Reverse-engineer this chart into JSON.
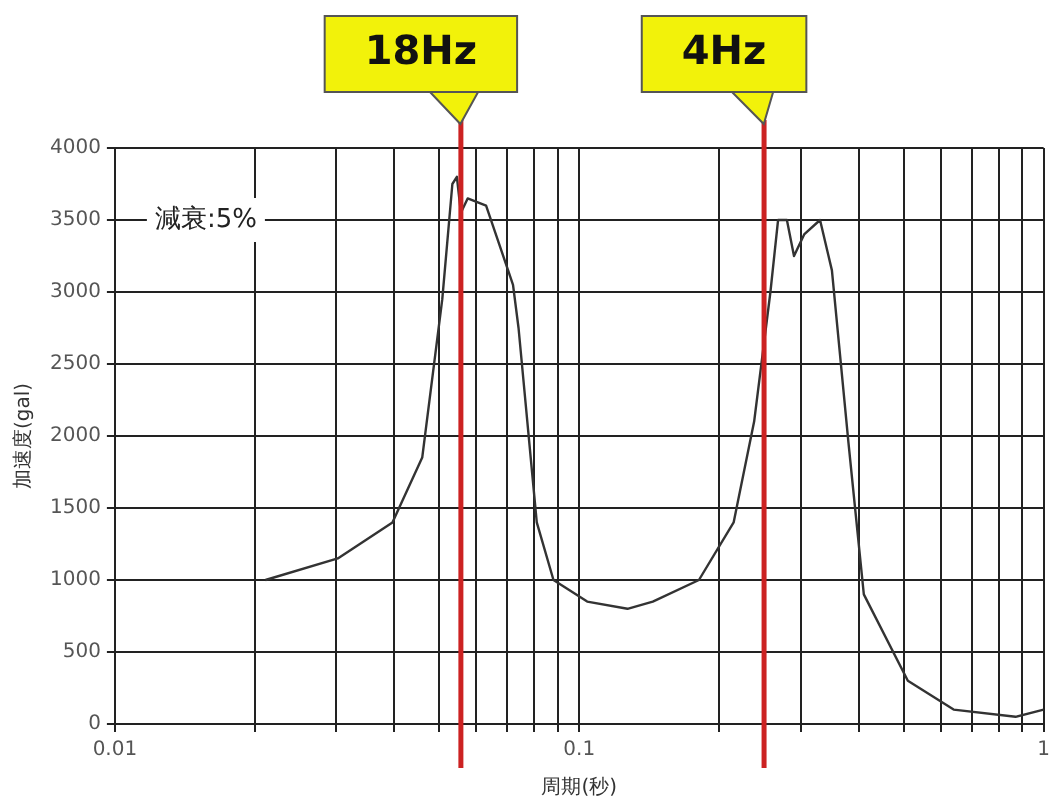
{
  "chart_data": {
    "type": "line",
    "xlabel": "周期(秒)",
    "ylabel": "加速度(gal)",
    "x": [
      0.0211,
      0.0302,
      0.0396,
      0.0459,
      0.0507,
      0.0533,
      0.0545,
      0.0556,
      0.0575,
      0.063,
      0.072,
      0.074,
      0.081,
      0.088,
      0.104,
      0.127,
      0.144,
      0.181,
      0.215,
      0.238,
      0.258,
      0.268,
      0.28,
      0.29,
      0.305,
      0.33,
      0.35,
      0.38,
      0.41,
      0.51,
      0.64,
      0.87,
      1.0
    ],
    "series": [
      {
        "color": "#333333",
        "values": [
          1000,
          1150,
          1400,
          1850,
          2950,
          3750,
          3800,
          3550,
          3650,
          3600,
          3050,
          2750,
          1400,
          1000,
          850,
          800,
          850,
          1000,
          1400,
          2100,
          3000,
          3500,
          3500,
          3250,
          3400,
          3500,
          3150,
          1950,
          900,
          300,
          100,
          50,
          100
        ]
      }
    ],
    "xlim": [
      0.01,
      1
    ],
    "xticks": [
      0.01,
      {
        "value": 0.02,
        "label": null
      },
      {
        "value": 0.03,
        "label": null
      },
      {
        "value": 0.04,
        "label": null
      },
      {
        "value": 0.05,
        "label": null
      },
      {
        "value": 0.06,
        "label": null
      },
      {
        "value": 0.07,
        "label": null
      },
      {
        "value": 0.08,
        "label": null
      },
      {
        "value": 0.09,
        "label": null
      },
      0.1,
      {
        "value": 0.2,
        "label": null
      },
      {
        "value": 0.3,
        "label": null
      },
      {
        "value": 0.4,
        "label": null
      },
      {
        "value": 0.5,
        "label": null
      },
      {
        "value": 0.6,
        "label": null
      },
      {
        "value": 0.7,
        "label": null
      },
      {
        "value": 0.8,
        "label": null
      },
      {
        "value": 0.9,
        "label": null
      },
      1
    ],
    "ylim": [
      0,
      4000
    ],
    "yticks": [
      0,
      500,
      1000,
      1500,
      2000,
      2500,
      3000,
      3500,
      4000
    ],
    "log": "x",
    "grid": true,
    "legend": false,
    "marker": "none",
    "line_style": "solid",
    "ref_lines": [
      {
        "axis": "x",
        "value": 0.0556,
        "label": "18Hz",
        "color": "#cc2222"
      },
      {
        "axis": "x",
        "value": 0.25,
        "label": "4Hz",
        "color": "#cc2222"
      }
    ],
    "annotations": [
      "減衰:5%"
    ]
  }
}
